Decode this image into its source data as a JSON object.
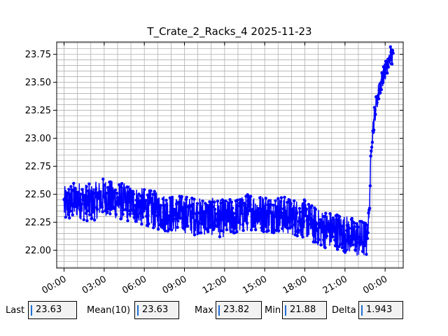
{
  "chart_data": {
    "type": "line",
    "title": "T_Crate_2_Racks_4 2025-11-23",
    "xlabel": "",
    "ylabel": "",
    "x_ticks": [
      "00:00",
      "03:00",
      "06:00",
      "09:00",
      "12:00",
      "15:00",
      "18:00",
      "21:00",
      "00:00"
    ],
    "y_ticks": [
      "22.00",
      "22.25",
      "22.50",
      "22.75",
      "23.00",
      "23.25",
      "23.50",
      "23.75"
    ],
    "xlim_hours": [
      -0.55,
      25.35
    ],
    "ylim": [
      21.84,
      23.86
    ],
    "grid": true,
    "line_color": "#0000ff",
    "marker": "circle",
    "series": [
      {
        "x_hours": [
          0.0,
          1.0,
          2.0,
          3.0,
          4.0,
          5.0,
          6.0,
          7.0,
          8.0,
          9.0,
          10.0,
          11.0,
          12.0,
          13.0,
          14.0,
          15.0,
          16.0,
          17.0,
          18.0,
          19.0,
          20.0,
          21.0,
          22.0,
          22.6,
          22.8,
          22.9,
          23.0,
          23.2,
          23.4,
          23.6,
          23.8,
          24.0,
          24.2,
          24.4,
          24.6
        ],
        "y": [
          22.4,
          22.45,
          22.42,
          22.48,
          22.44,
          22.42,
          22.38,
          22.35,
          22.33,
          22.32,
          22.3,
          22.3,
          22.28,
          22.3,
          22.35,
          22.33,
          22.32,
          22.3,
          22.28,
          22.2,
          22.18,
          22.15,
          22.1,
          22.1,
          22.3,
          22.7,
          23.0,
          23.2,
          23.35,
          23.45,
          23.55,
          23.6,
          23.65,
          23.75,
          23.7
        ]
      }
    ]
  },
  "stats": {
    "last": {
      "label": "Last",
      "value": "23.63"
    },
    "mean": {
      "label": "Mean(10)",
      "value": "23.63"
    },
    "max": {
      "label": "Max",
      "value": "23.82"
    },
    "min": {
      "label": "Min",
      "value": "21.88"
    },
    "delta": {
      "label": "Delta",
      "value": "1.943"
    }
  }
}
